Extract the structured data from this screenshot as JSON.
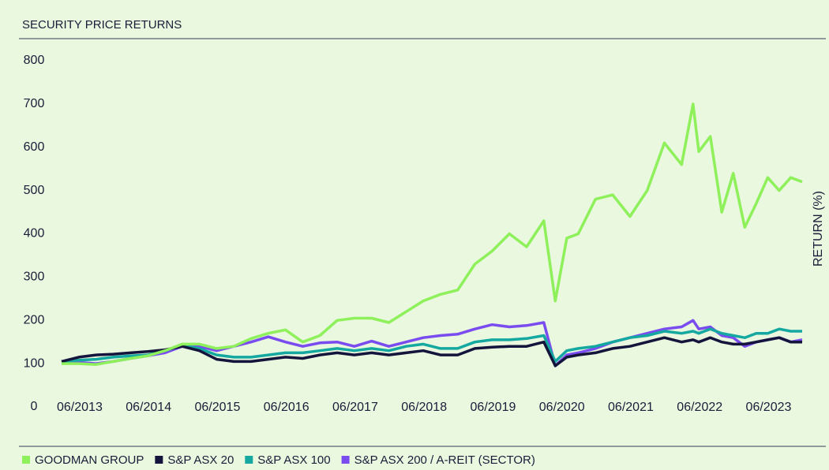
{
  "chart_data": {
    "type": "line",
    "title": "SECURITY PRICE RETURNS",
    "y_label": "RETURN (%)",
    "x": [
      "06/2013",
      "09/2013",
      "12/2013",
      "03/2014",
      "06/2014",
      "09/2014",
      "12/2014",
      "03/2015",
      "06/2015",
      "09/2015",
      "12/2015",
      "03/2016",
      "06/2016",
      "09/2016",
      "12/2016",
      "03/2017",
      "06/2017",
      "09/2017",
      "12/2017",
      "03/2018",
      "06/2018",
      "09/2018",
      "12/2018",
      "03/2019",
      "06/2019",
      "09/2019",
      "12/2019",
      "03/2020",
      "06/2020",
      "08/2020",
      "10/2020",
      "12/2020",
      "03/2021",
      "06/2021",
      "09/2021",
      "12/2021",
      "03/2022",
      "06/2022",
      "08/2022",
      "09/2022",
      "11/2022",
      "01/2023",
      "03/2023",
      "05/2023",
      "07/2023",
      "09/2023",
      "11/2023",
      "01/2024",
      "03/2024"
    ],
    "series": [
      {
        "name": "GOODMAN GROUP",
        "color": "#8ef05a",
        "values": [
          100,
          100,
          98,
          105,
          112,
          118,
          130,
          145,
          145,
          135,
          140,
          158,
          170,
          178,
          150,
          165,
          200,
          205,
          205,
          195,
          220,
          245,
          260,
          270,
          330,
          360,
          400,
          370,
          430,
          245,
          390,
          400,
          480,
          490,
          440,
          500,
          610,
          560,
          700,
          590,
          625,
          450,
          540,
          415,
          470,
          530,
          500,
          530,
          520
        ]
      },
      {
        "name": "S&P ASX 20",
        "color": "#14143c",
        "values": [
          105,
          115,
          120,
          122,
          125,
          128,
          132,
          140,
          130,
          110,
          105,
          105,
          110,
          115,
          112,
          120,
          125,
          120,
          125,
          120,
          125,
          130,
          120,
          120,
          135,
          138,
          140,
          140,
          150,
          95,
          115,
          120,
          125,
          135,
          140,
          150,
          160,
          150,
          155,
          150,
          160,
          150,
          145,
          145,
          150,
          155,
          160,
          150,
          150
        ]
      },
      {
        "name": "S&P ASX 100",
        "color": "#14a8a0",
        "values": [
          105,
          108,
          110,
          115,
          118,
          120,
          130,
          142,
          135,
          120,
          115,
          115,
          120,
          125,
          125,
          130,
          135,
          130,
          135,
          130,
          140,
          145,
          135,
          135,
          150,
          155,
          155,
          158,
          165,
          105,
          130,
          135,
          140,
          150,
          160,
          165,
          175,
          170,
          175,
          170,
          180,
          170,
          165,
          160,
          170,
          170,
          180,
          175,
          175
        ]
      },
      {
        "name": "S&P ASX 200 / A-REIT (SECTOR)",
        "color": "#7a4cf0",
        "values": [
          105,
          103,
          100,
          105,
          112,
          118,
          125,
          140,
          140,
          130,
          140,
          150,
          162,
          150,
          140,
          148,
          150,
          140,
          152,
          140,
          150,
          160,
          165,
          168,
          180,
          190,
          185,
          188,
          195,
          95,
          120,
          125,
          135,
          150,
          160,
          170,
          180,
          185,
          200,
          180,
          185,
          165,
          160,
          140,
          150,
          155,
          160,
          150,
          155
        ]
      }
    ],
    "xlim": [
      "06/2013",
      "03/2024"
    ],
    "xticks": [
      "06/2013",
      "06/2014",
      "06/2015",
      "06/2016",
      "06/2017",
      "06/2018",
      "06/2019",
      "06/2020",
      "06/2021",
      "06/2022",
      "06/2023"
    ],
    "ylim": [
      0,
      800
    ],
    "yticks": [
      0,
      100,
      200,
      300,
      400,
      500,
      600,
      700,
      800
    ],
    "grid": false,
    "legend": "bottom"
  }
}
